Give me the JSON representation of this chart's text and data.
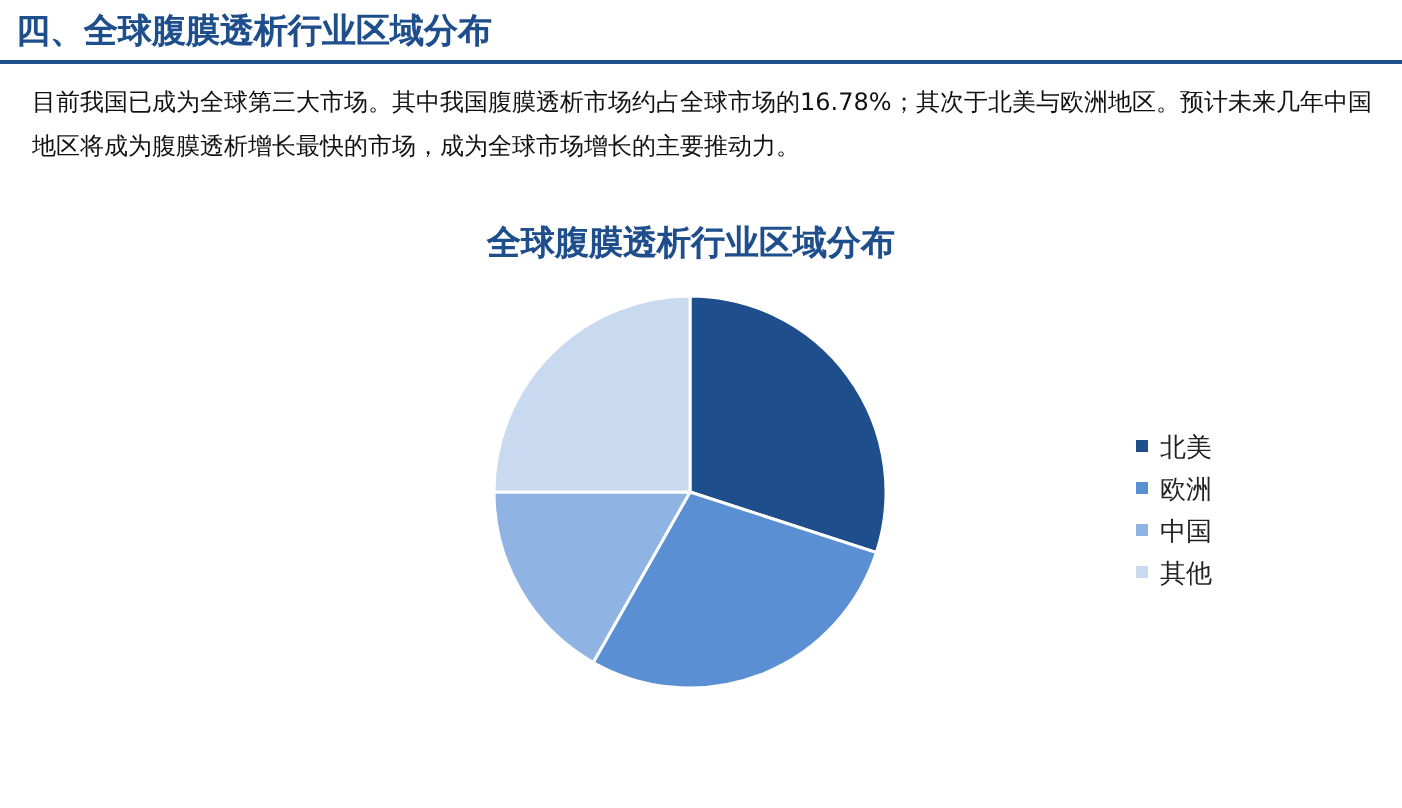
{
  "chart_data": {
    "type": "pie",
    "title": "四、全球腹膜透析行业区域分布",
    "subtitle": "目前我国已成为全球第三大市场。其中我国腹膜透析市场约占全球市场的16.78%；其次于北美与欧洲地区。预计未来几年中国地区将成为腹膜透析增长最快的市场，成为全球市场增长的主要推动力。",
    "annotations": [
      "全球腹膜透析行业区域分布"
    ],
    "categories": [
      "北美",
      "欧洲",
      "中国",
      "其他"
    ],
    "values": [
      30,
      28.22,
      16.78,
      25
    ],
    "colors": [
      "#1f4e8c",
      "#5b8fd4",
      "#8fb4e3",
      "#c8d9f0"
    ],
    "legend": "right"
  }
}
